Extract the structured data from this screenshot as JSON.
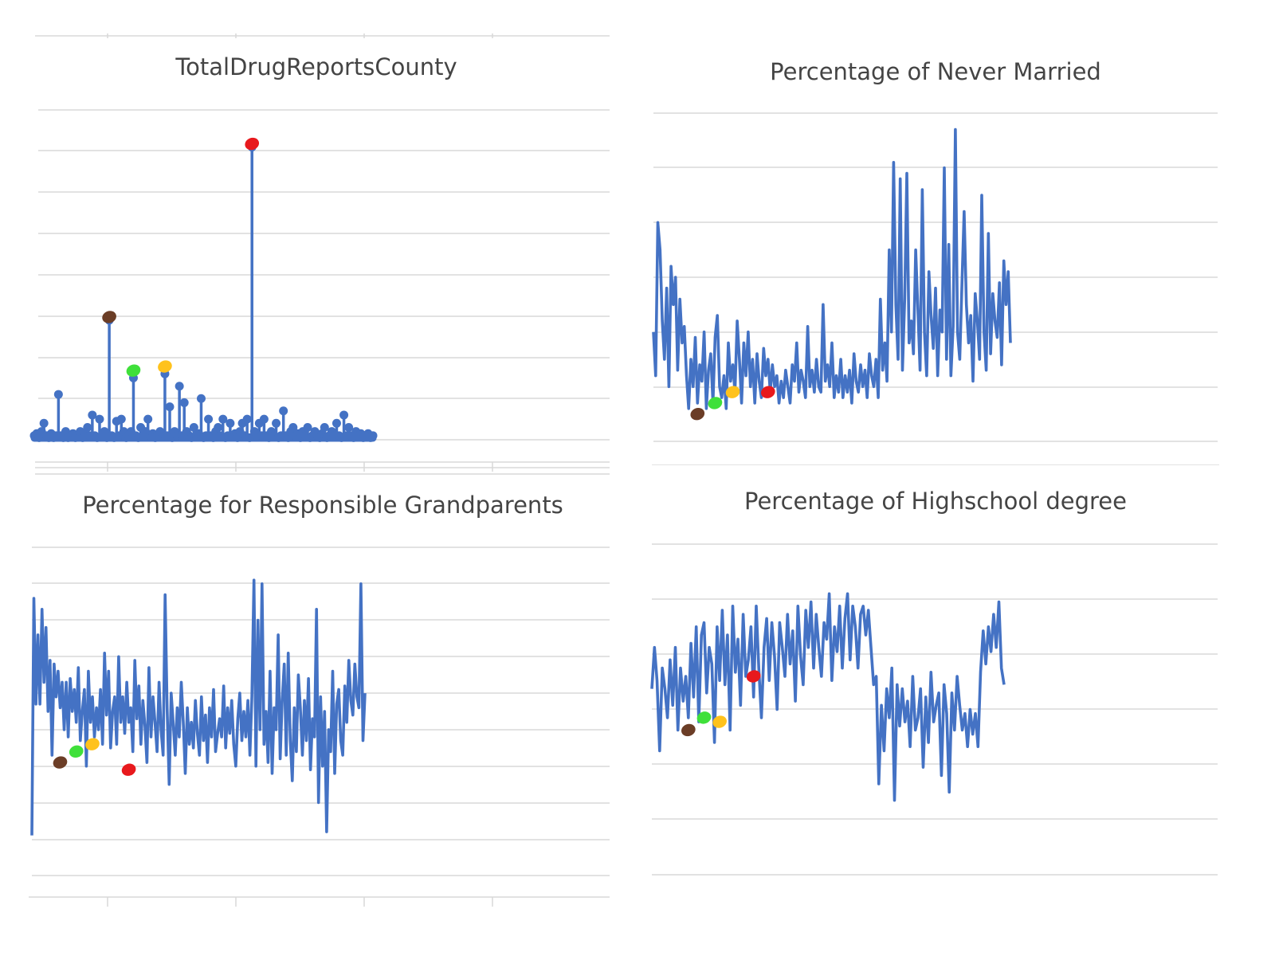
{
  "colors": {
    "line": "#4472c4",
    "grid": "#d9d9d9",
    "title": "#444444",
    "markers": {
      "brown": "#6b3d26",
      "green": "#3fe03a",
      "yellow": "#ffc21c",
      "red": "#e8191d"
    }
  },
  "chart_data": [
    {
      "type": "line",
      "title": "TotalDrugReportsCounty",
      "xlabel": "",
      "ylabel": "",
      "ylim": [
        0,
        80
      ],
      "grid": true,
      "legend": "none",
      "style": "lollipop",
      "series": [
        {
          "values": [
            1,
            1.5,
            0.5,
            2,
            4,
            1,
            0.5,
            1.5,
            0.5,
            1,
            11,
            1,
            0.5,
            2,
            0.5,
            1,
            1.5,
            0.5,
            1,
            2,
            0.5,
            1.5,
            3,
            1,
            6,
            1,
            0.5,
            5,
            1,
            2,
            0.5,
            29,
            1,
            0.5,
            4.5,
            1,
            5,
            2,
            0.5,
            1,
            2,
            15,
            1,
            0.5,
            3,
            1,
            2,
            5,
            1,
            1.5,
            0.5,
            1,
            2,
            1.5,
            16,
            1,
            8,
            0.5,
            2,
            1,
            13,
            1,
            9,
            2,
            1,
            0.5,
            3,
            1,
            1.5,
            10,
            0.5,
            1,
            5,
            1,
            0.5,
            2,
            3,
            1,
            5,
            0.5,
            1,
            4,
            1,
            1.5,
            0.5,
            2,
            4,
            1,
            5,
            0.5,
            71,
            2,
            1,
            4,
            1,
            5,
            1,
            0.5,
            2,
            1,
            4,
            0.5,
            1,
            7,
            1,
            0.5,
            2,
            3,
            1,
            1.5,
            0.5,
            2,
            1,
            3,
            0.5,
            1,
            2,
            1,
            0.5,
            1.5,
            3,
            0.5,
            1,
            2,
            1,
            4,
            1,
            0.5,
            6,
            1,
            3,
            1,
            0.5,
            2,
            1,
            1.5,
            0.5,
            1,
            1.5,
            0.5,
            1
          ]
        }
      ],
      "markers": [
        {
          "color": "brown",
          "x": 31,
          "y": 29
        },
        {
          "color": "green",
          "x": 41,
          "y": 16
        },
        {
          "color": "yellow",
          "x": 54,
          "y": 17
        },
        {
          "color": "red",
          "x": 90,
          "y": 71
        }
      ]
    },
    {
      "type": "line",
      "title": "Percentage of Never Married",
      "xlabel": "",
      "ylabel": "",
      "ylim": [
        0,
        6
      ],
      "grid": true,
      "legend": "none",
      "series": [
        {
          "values": [
            2.0,
            1.2,
            4.0,
            3.5,
            2.2,
            1.5,
            2.8,
            1.0,
            3.2,
            2.5,
            3.0,
            1.3,
            2.6,
            1.8,
            2.1,
            1.2,
            0.6,
            1.5,
            1.0,
            1.9,
            0.7,
            1.4,
            1.1,
            2.0,
            0.6,
            1.3,
            1.6,
            0.7,
            1.9,
            2.3,
            1.0,
            0.8,
            1.2,
            0.6,
            1.8,
            1.1,
            1.4,
            0.9,
            2.2,
            1.5,
            0.7,
            1.8,
            1.2,
            2.0,
            1.0,
            1.5,
            0.7,
            1.6,
            1.1,
            0.8,
            1.7,
            1.2,
            1.5,
            0.9,
            1.4,
            1.0,
            1.2,
            0.7,
            1.1,
            0.8,
            1.3,
            1.0,
            0.7,
            1.4,
            1.1,
            1.8,
            0.9,
            1.3,
            1.1,
            0.8,
            2.1,
            1.0,
            1.3,
            0.9,
            1.5,
            1.0,
            0.9,
            2.5,
            1.1,
            1.4,
            1.0,
            1.8,
            0.8,
            1.2,
            0.9,
            1.5,
            0.8,
            1.2,
            0.9,
            1.3,
            0.7,
            1.6,
            1.1,
            0.9,
            1.4,
            1.0,
            1.3,
            0.8,
            1.6,
            1.2,
            1.0,
            1.5,
            0.8,
            2.6,
            1.3,
            1.8,
            1.1,
            3.5,
            2.0,
            5.1,
            2.5,
            1.5,
            4.8,
            1.3,
            2.6,
            4.9,
            1.8,
            2.2,
            1.6,
            3.5,
            2.4,
            1.3,
            4.6,
            2.0,
            1.2,
            3.1,
            2.3,
            1.7,
            2.8,
            1.2,
            2.4,
            2.0,
            5.0,
            1.5,
            3.6,
            1.2,
            2.1,
            5.7,
            2.0,
            1.5,
            2.9,
            4.2,
            2.5,
            1.8,
            2.3,
            1.1,
            2.7,
            2.2,
            1.5,
            4.5,
            2.0,
            1.3,
            3.8,
            1.6,
            2.7,
            2.2,
            1.9,
            2.9,
            1.4,
            3.3,
            2.5,
            3.1,
            1.8
          ]
        }
      ],
      "markers": [
        {
          "color": "brown",
          "x": 20,
          "y": 0.5
        },
        {
          "color": "green",
          "x": 28,
          "y": 0.7
        },
        {
          "color": "yellow",
          "x": 36,
          "y": 0.9
        },
        {
          "color": "red",
          "x": 52,
          "y": 0.9
        }
      ]
    },
    {
      "type": "line",
      "title": "Percentage for Responsible Grandparents",
      "xlabel": "",
      "ylabel": "",
      "ylim": [
        0,
        9
      ],
      "grid": true,
      "legend": "none",
      "series": [
        {
          "values": [
            1.1,
            7.6,
            4.7,
            6.6,
            4.7,
            7.3,
            5.3,
            6.8,
            4.5,
            5.9,
            3.3,
            5.8,
            4.9,
            5.6,
            4.6,
            5.3,
            4.0,
            5.3,
            3.8,
            5.4,
            4.5,
            5.1,
            4.2,
            5.7,
            3.7,
            4.5,
            5.1,
            3.0,
            5.6,
            4.2,
            4.9,
            3.8,
            4.6,
            4.0,
            5.1,
            3.6,
            6.1,
            4.4,
            5.6,
            3.5,
            4.5,
            4.9,
            3.6,
            6.0,
            4.2,
            4.9,
            3.9,
            5.3,
            4.2,
            4.6,
            3.4,
            5.9,
            4.3,
            5.2,
            3.6,
            4.8,
            4.1,
            3.1,
            5.7,
            3.8,
            4.9,
            4.2,
            3.4,
            5.3,
            4.0,
            3.3,
            7.7,
            4.6,
            2.5,
            5.0,
            4.2,
            3.3,
            4.6,
            3.8,
            5.3,
            4.2,
            2.8,
            4.6,
            3.6,
            4.2,
            3.5,
            4.8,
            3.9,
            3.3,
            4.9,
            3.7,
            4.4,
            3.1,
            4.6,
            3.8,
            5.1,
            3.4,
            3.9,
            4.3,
            3.8,
            5.2,
            3.5,
            4.6,
            3.9,
            4.8,
            3.6,
            3.0,
            4.3,
            5.0,
            3.7,
            4.5,
            3.8,
            4.8,
            3.3,
            4.9,
            8.1,
            3.0,
            7.0,
            4.0,
            8.0,
            3.6,
            4.5,
            3.1,
            5.6,
            2.8,
            4.6,
            4.0,
            6.6,
            3.2,
            4.8,
            5.8,
            3.3,
            6.1,
            3.7,
            2.6,
            4.6,
            3.4,
            5.5,
            4.6,
            3.3,
            4.8,
            3.7,
            5.4,
            2.9,
            4.3,
            3.8,
            7.3,
            2.0,
            4.9,
            3.0,
            4.5,
            1.2,
            4.0,
            3.4,
            5.6,
            2.8,
            4.7,
            5.1,
            3.7,
            3.3,
            5.2,
            4.2,
            5.9,
            4.8,
            4.4,
            5.8,
            4.9,
            4.6,
            8.0,
            3.7,
            5.0
          ]
        }
      ],
      "markers": [
        {
          "color": "brown",
          "x": 14,
          "y": 3.1
        },
        {
          "color": "green",
          "x": 22,
          "y": 3.4
        },
        {
          "color": "yellow",
          "x": 30,
          "y": 3.6
        },
        {
          "color": "red",
          "x": 48,
          "y": 2.9
        }
      ]
    },
    {
      "type": "line",
      "title": "Percentage of Highschool degree",
      "xlabel": "",
      "ylabel": "",
      "ylim": [
        0,
        8
      ],
      "grid": true,
      "legend": "none",
      "series": [
        {
          "values": [
            4.5,
            5.5,
            4.7,
            3.0,
            5.0,
            4.5,
            3.8,
            5.2,
            4.1,
            5.5,
            3.5,
            5.0,
            4.2,
            4.8,
            3.8,
            5.6,
            4.3,
            6.0,
            3.7,
            5.8,
            6.1,
            4.4,
            5.5,
            5.1,
            3.2,
            6.0,
            4.7,
            6.4,
            4.6,
            5.8,
            3.5,
            6.5,
            4.9,
            5.7,
            4.1,
            6.3,
            4.8,
            5.2,
            6.0,
            4.3,
            6.5,
            5.0,
            3.8,
            5.5,
            6.2,
            4.7,
            6.1,
            5.3,
            4.0,
            6.1,
            5.5,
            4.8,
            6.3,
            5.1,
            5.9,
            4.2,
            6.5,
            5.3,
            4.6,
            6.4,
            5.5,
            6.6,
            5.0,
            6.3,
            5.5,
            4.8,
            6.1,
            5.7,
            6.8,
            4.7,
            6.0,
            5.4,
            6.5,
            5.0,
            6.2,
            6.8,
            5.2,
            6.5,
            6.0,
            5.0,
            6.3,
            6.5,
            5.8,
            6.4,
            5.5,
            4.6,
            4.8,
            2.2,
            4.1,
            3.0,
            4.5,
            3.8,
            5.0,
            1.8,
            4.6,
            3.6,
            4.5,
            3.7,
            4.2,
            3.1,
            4.8,
            3.5,
            3.8,
            4.5,
            2.6,
            4.3,
            3.2,
            4.9,
            3.7,
            4.1,
            4.4,
            2.4,
            4.6,
            3.9,
            2.0,
            4.4,
            3.5,
            4.8,
            4.1,
            3.5,
            3.9,
            3.1,
            4.0,
            3.4,
            3.9,
            3.1,
            4.9,
            5.9,
            5.1,
            6.0,
            5.4,
            6.3,
            5.5,
            6.6,
            5.0,
            4.6
          ]
        }
      ],
      "markers": [
        {
          "color": "brown",
          "x": 14,
          "y": 3.5
        },
        {
          "color": "green",
          "x": 20,
          "y": 3.8
        },
        {
          "color": "yellow",
          "x": 26,
          "y": 3.7
        },
        {
          "color": "red",
          "x": 39,
          "y": 4.8
        }
      ]
    }
  ]
}
